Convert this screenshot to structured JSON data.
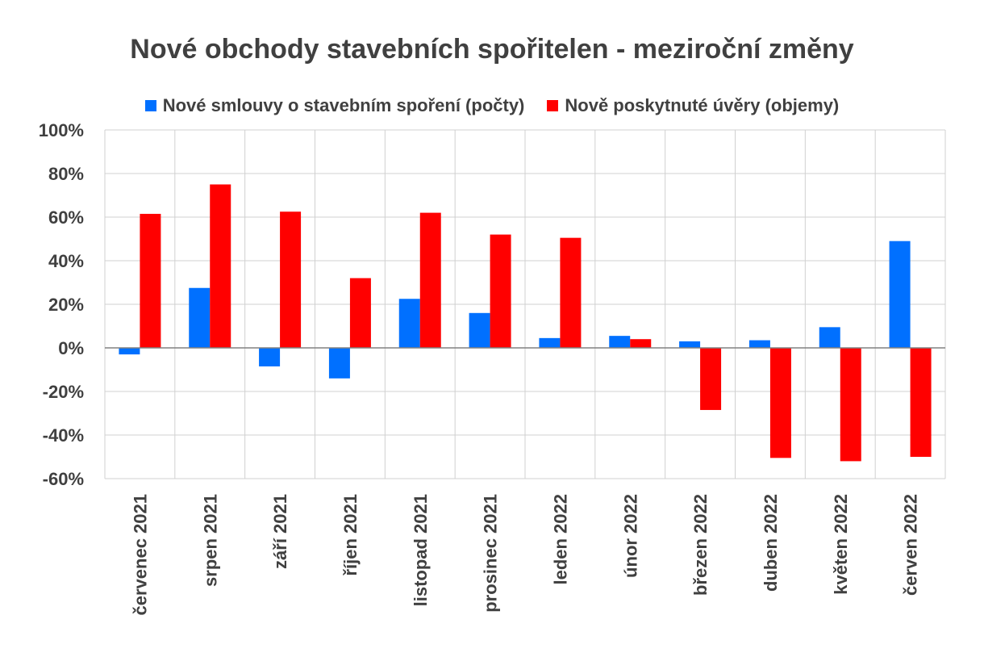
{
  "chart_data": {
    "type": "bar",
    "title": "Nové obchody stavebních spořitelen - meziroční změny",
    "categories": [
      "červenec 2021",
      "srpen 2021",
      "září 2021",
      "říjen 2021",
      "listopad 2021",
      "prosinec 2021",
      "leden 2022",
      "únor 2022",
      "březen 2022",
      "duben 2022",
      "květen 2022",
      "červen 2022"
    ],
    "series": [
      {
        "name": "Nové smlouvy o stavebním spoření (počty)",
        "color": "#0070FF",
        "values": [
          -3,
          27.5,
          -8.5,
          -14,
          22.5,
          16,
          4.5,
          5.5,
          3,
          3.5,
          9.5,
          49
        ]
      },
      {
        "name": "Nově poskytnuté úvěry (objemy)",
        "color": "#FF0000",
        "values": [
          61.5,
          75,
          62.5,
          32,
          62,
          52,
          50.5,
          4,
          -28.5,
          -50.5,
          -52,
          -50
        ]
      }
    ],
    "ylim": [
      -60,
      100
    ],
    "yticks": [
      100,
      80,
      60,
      40,
      20,
      0,
      -20,
      -40,
      -60
    ],
    "ytick_labels": [
      "100%",
      "80%",
      "60%",
      "40%",
      "20%",
      "0%",
      "-20%",
      "-40%",
      "-60%"
    ],
    "grid": true,
    "legend_position": "top"
  }
}
